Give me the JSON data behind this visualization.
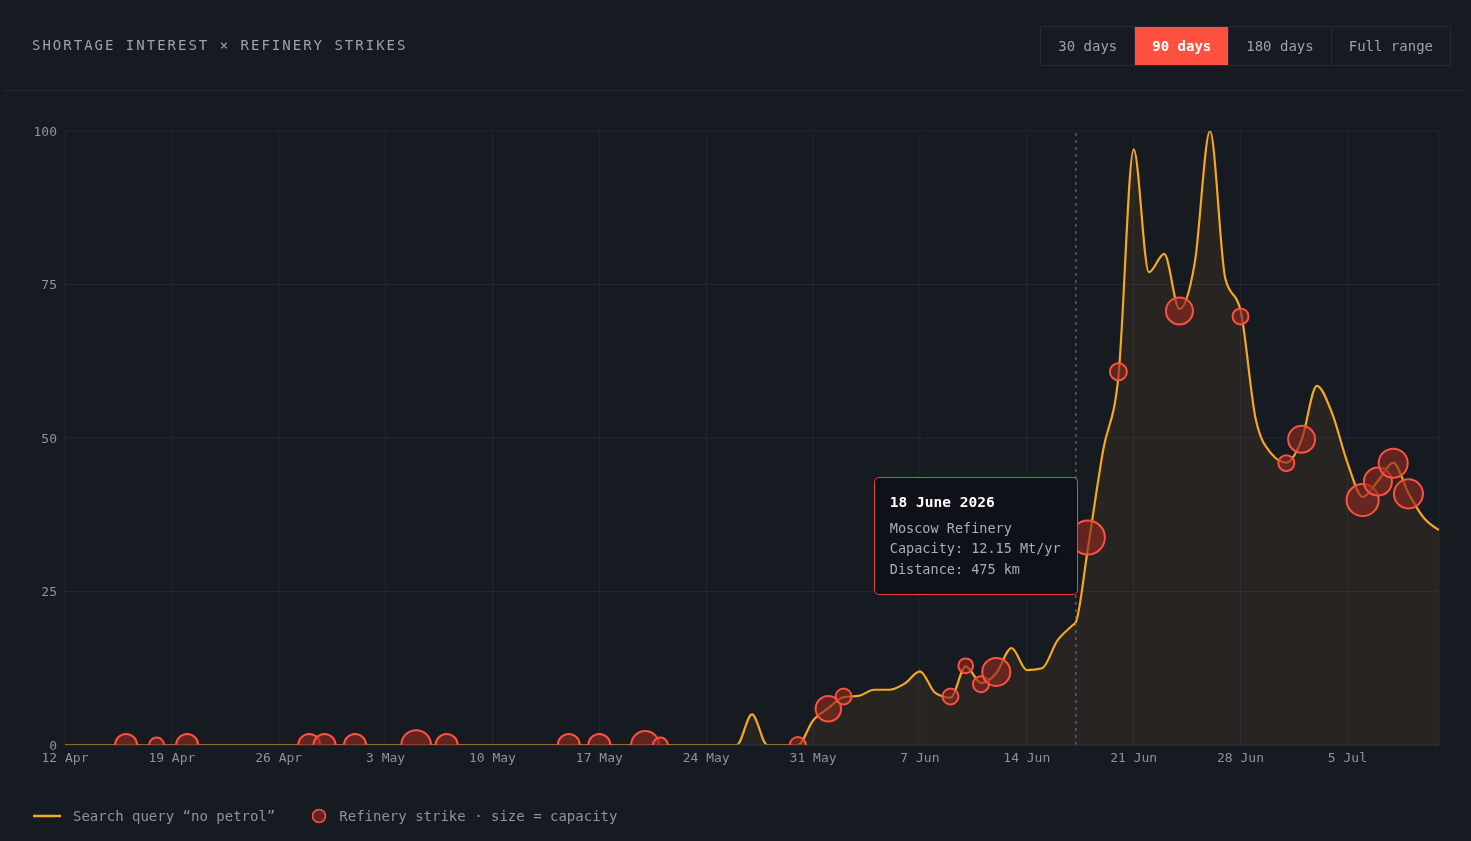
{
  "chart_data": {
    "type": "area",
    "title": "SHORTAGE INTEREST × REFINERY STRIKES",
    "xlim": [
      "2026-04-12",
      "2026-07-11"
    ],
    "xticks": [
      {
        "value": "2026-04-12",
        "label": "12 Apr"
      },
      {
        "value": "2026-04-19",
        "label": "19 Apr"
      },
      {
        "value": "2026-04-26",
        "label": "26 Apr"
      },
      {
        "value": "2026-05-03",
        "label": "3 May"
      },
      {
        "value": "2026-05-10",
        "label": "10 May"
      },
      {
        "value": "2026-05-17",
        "label": "17 May"
      },
      {
        "value": "2026-05-24",
        "label": "24 May"
      },
      {
        "value": "2026-05-31",
        "label": "31 May"
      },
      {
        "value": "2026-06-07",
        "label": "7 Jun"
      },
      {
        "value": "2026-06-14",
        "label": "14 Jun"
      },
      {
        "value": "2026-06-21",
        "label": "21 Jun"
      },
      {
        "value": "2026-06-28",
        "label": "28 Jun"
      },
      {
        "value": "2026-07-05",
        "label": "5 Jul"
      }
    ],
    "ylim": [
      0,
      100
    ],
    "yticks": [
      0,
      25,
      50,
      75,
      100
    ],
    "grid": true,
    "legend": "bottom left",
    "series": [
      {
        "name": "Search query “no petrol”",
        "color": "#f5a623",
        "x": [
          "2026-04-12",
          "2026-05-26",
          "2026-05-27",
          "2026-05-28",
          "2026-05-30",
          "2026-05-31",
          "2026-06-01",
          "2026-06-02",
          "2026-06-03",
          "2026-06-04",
          "2026-06-05",
          "2026-06-06",
          "2026-06-07",
          "2026-06-08",
          "2026-06-09",
          "2026-06-10",
          "2026-06-11",
          "2026-06-12",
          "2026-06-13",
          "2026-06-14",
          "2026-06-15",
          "2026-06-16",
          "2026-06-17",
          "2026-06-17T05:00",
          "2026-06-18",
          "2026-06-19",
          "2026-06-20",
          "2026-06-21",
          "2026-06-22",
          "2026-06-23",
          "2026-06-24",
          "2026-06-25",
          "2026-06-26",
          "2026-06-27",
          "2026-06-28",
          "2026-06-29",
          "2026-06-30",
          "2026-07-01",
          "2026-07-02",
          "2026-07-03",
          "2026-07-04",
          "2026-07-05",
          "2026-07-06",
          "2026-07-07",
          "2026-07-08",
          "2026-07-09",
          "2026-07-10",
          "2026-07-11"
        ],
        "values": [
          0,
          0,
          5,
          0,
          0,
          4,
          6,
          7.8,
          8,
          9,
          9,
          10,
          12,
          8.5,
          7.7,
          12.8,
          10.1,
          11.7,
          15.8,
          12.2,
          12.5,
          17,
          19.5,
          20,
          32,
          48,
          60,
          97,
          77,
          80,
          71,
          78.5,
          100,
          76,
          70.8,
          53,
          47.5,
          46,
          49.7,
          58.5,
          54,
          46,
          40.4,
          43,
          46,
          41,
          37,
          35
        ]
      },
      {
        "type": "bubble",
        "name": "Refinery strike · size = capacity",
        "color": "#ff5040",
        "x": [
          "2026-04-16",
          "2026-04-18",
          "2026-04-20",
          "2026-04-28",
          "2026-04-29",
          "2026-05-01",
          "2026-05-05",
          "2026-05-07",
          "2026-05-15",
          "2026-05-17",
          "2026-05-20",
          "2026-05-21",
          "2026-05-30",
          "2026-06-01",
          "2026-06-02",
          "2026-06-09",
          "2026-06-10",
          "2026-06-11",
          "2026-06-12",
          "2026-06-18",
          "2026-06-20",
          "2026-06-24",
          "2026-06-28",
          "2026-07-01",
          "2026-07-02",
          "2026-07-06",
          "2026-07-07",
          "2026-07-08",
          "2026-07-09"
        ],
        "values": [
          0,
          0,
          0,
          0,
          0,
          0,
          0,
          0,
          0,
          0,
          0,
          0,
          0,
          5.9,
          7.9,
          7.9,
          12.9,
          9.9,
          11.9,
          33.8,
          60.8,
          70.7,
          69.8,
          45.9,
          49.8,
          39.9,
          42.9,
          45.9,
          40.9
        ],
        "sizes": [
          0.42,
          0.19,
          0.42,
          0.42,
          0.42,
          0.42,
          0.76,
          0.42,
          0.42,
          0.42,
          0.68,
          0.19,
          0.22,
          0.56,
          0.22,
          0.22,
          0.19,
          0.22,
          0.68,
          1,
          0.25,
          0.63,
          0.22,
          0.22,
          0.63,
          0.89,
          0.68,
          0.73,
          0.73
        ]
      }
    ],
    "ref_lines": [
      {
        "axis": "x",
        "value": "2026-06-17T05:00",
        "color": "#5a5f66",
        "line_style": "dashed"
      }
    ],
    "annotations": [
      "30 days",
      "90 days",
      "180 days",
      "Full range",
      {
        "text": "18 June 2026\nMoscow Refinery\nCapacity: 12.15 Mt/yr\nDistance: 475 km",
        "x": "2026-06-18",
        "y": 33.8
      }
    ]
  }
}
